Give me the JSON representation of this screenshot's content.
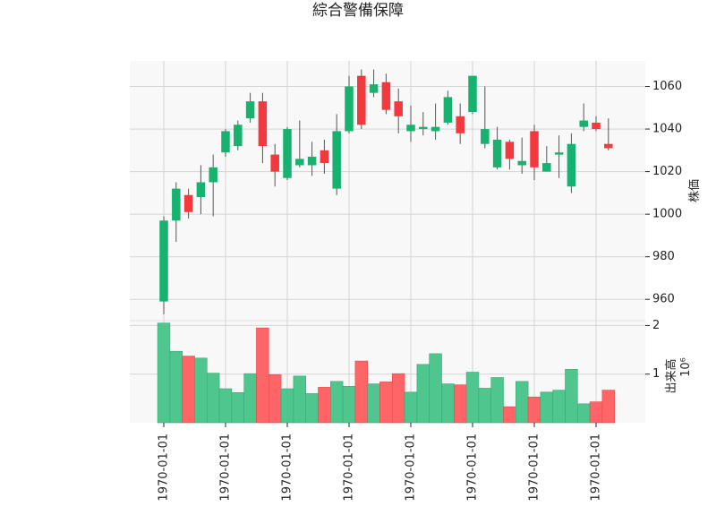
{
  "chart_data": {
    "type": "candlestick",
    "title": "綜合警備保障",
    "price_ylabel": "株価",
    "volume_ylabel": "出来高",
    "volume_multiplier_label": "10⁶",
    "up_color": "#17b26f",
    "down_color": "#f2393e",
    "up_volume_color": "#4ec68e",
    "down_volume_color": "#ff6466",
    "price_ylim": [
      950,
      1072
    ],
    "price_yticks": [
      960,
      980,
      1000,
      1020,
      1040,
      1060
    ],
    "volume_ylim": [
      0,
      2.1
    ],
    "volume_yticks": [
      1,
      2
    ],
    "x_tick_labels": [
      "1970-01-01",
      "1970-01-01",
      "1970-01-01",
      "1970-01-01",
      "1970-01-01",
      "1970-01-01",
      "1970-01-01",
      "1970-01-01"
    ],
    "x_tick_indices": [
      0,
      5,
      10,
      15,
      20,
      25,
      30,
      35
    ],
    "candles": [
      {
        "o": 959,
        "h": 999,
        "l": 953,
        "c": 997,
        "v": 2.05
      },
      {
        "o": 997,
        "h": 1015,
        "l": 987,
        "c": 1012,
        "v": 1.47
      },
      {
        "o": 1009,
        "h": 1012,
        "l": 998,
        "c": 1001,
        "v": 1.37
      },
      {
        "o": 1008,
        "h": 1023,
        "l": 1000,
        "c": 1015,
        "v": 1.33
      },
      {
        "o": 1015,
        "h": 1028,
        "l": 999,
        "c": 1022,
        "v": 1.02
      },
      {
        "o": 1029,
        "h": 1040,
        "l": 1027,
        "c": 1039,
        "v": 0.7
      },
      {
        "o": 1032,
        "h": 1044,
        "l": 1030,
        "c": 1042,
        "v": 0.62
      },
      {
        "o": 1045,
        "h": 1057,
        "l": 1043,
        "c": 1053,
        "v": 1.01
      },
      {
        "o": 1053,
        "h": 1057,
        "l": 1024,
        "c": 1032,
        "v": 1.95
      },
      {
        "o": 1028,
        "h": 1033,
        "l": 1013,
        "c": 1020,
        "v": 0.99
      },
      {
        "o": 1017,
        "h": 1041,
        "l": 1016,
        "c": 1040,
        "v": 0.7
      },
      {
        "o": 1023,
        "h": 1044,
        "l": 1022,
        "c": 1026,
        "v": 0.96
      },
      {
        "o": 1023,
        "h": 1034,
        "l": 1018,
        "c": 1027,
        "v": 0.6
      },
      {
        "o": 1030,
        "h": 1035,
        "l": 1019,
        "c": 1024,
        "v": 0.73
      },
      {
        "o": 1012,
        "h": 1047,
        "l": 1009,
        "c": 1039,
        "v": 0.85
      },
      {
        "o": 1039,
        "h": 1065,
        "l": 1038,
        "c": 1060,
        "v": 0.75
      },
      {
        "o": 1065,
        "h": 1068,
        "l": 1040,
        "c": 1042,
        "v": 1.27
      },
      {
        "o": 1057,
        "h": 1068,
        "l": 1055,
        "c": 1061,
        "v": 0.8
      },
      {
        "o": 1062,
        "h": 1066,
        "l": 1047,
        "c": 1049,
        "v": 0.84
      },
      {
        "o": 1053,
        "h": 1059,
        "l": 1038,
        "c": 1046,
        "v": 1.01
      },
      {
        "o": 1039,
        "h": 1051,
        "l": 1034,
        "c": 1042,
        "v": 0.63
      },
      {
        "o": 1040,
        "h": 1048,
        "l": 1037,
        "c": 1041,
        "v": 1.2
      },
      {
        "o": 1039,
        "h": 1052,
        "l": 1035,
        "c": 1041,
        "v": 1.42
      },
      {
        "o": 1043,
        "h": 1058,
        "l": 1042,
        "c": 1055,
        "v": 0.8
      },
      {
        "o": 1046,
        "h": 1052,
        "l": 1033,
        "c": 1038,
        "v": 0.78
      },
      {
        "o": 1048,
        "h": 1065,
        "l": 1047,
        "c": 1065,
        "v": 1.04
      },
      {
        "o": 1033,
        "h": 1060,
        "l": 1031,
        "c": 1040,
        "v": 0.71
      },
      {
        "o": 1022,
        "h": 1041,
        "l": 1021,
        "c": 1035,
        "v": 0.93
      },
      {
        "o": 1034,
        "h": 1035,
        "l": 1021,
        "c": 1026,
        "v": 0.33
      },
      {
        "o": 1023,
        "h": 1036,
        "l": 1019,
        "c": 1025,
        "v": 0.85
      },
      {
        "o": 1039,
        "h": 1042,
        "l": 1016,
        "c": 1022,
        "v": 0.53
      },
      {
        "o": 1020,
        "h": 1032,
        "l": 1020,
        "c": 1024,
        "v": 0.63
      },
      {
        "o": 1028,
        "h": 1037,
        "l": 1017,
        "c": 1029,
        "v": 0.67
      },
      {
        "o": 1013,
        "h": 1038,
        "l": 1010,
        "c": 1033,
        "v": 1.1
      },
      {
        "o": 1041,
        "h": 1052,
        "l": 1039,
        "c": 1044,
        "v": 0.39
      },
      {
        "o": 1043,
        "h": 1046,
        "l": 1039,
        "c": 1040,
        "v": 0.43
      },
      {
        "o": 1033,
        "h": 1045,
        "l": 1030,
        "c": 1031,
        "v": 0.67
      }
    ]
  }
}
